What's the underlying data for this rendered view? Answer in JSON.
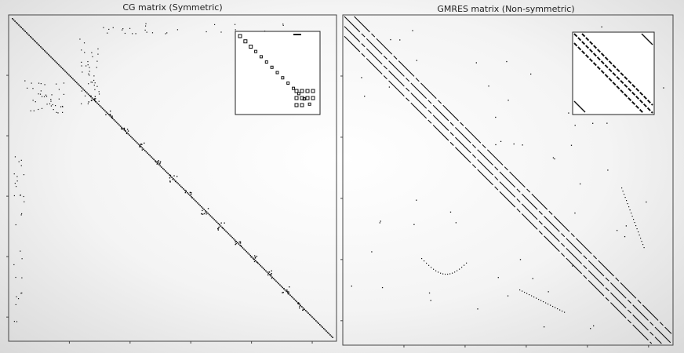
{
  "chart_data": [
    {
      "type": "spy",
      "title": "CG matrix (Symmetric)",
      "xlabel": "",
      "ylabel": "",
      "structure": {
        "main_diagonal": true,
        "off_diagonals": [],
        "symmetric_scatter": true,
        "diagonal_blocks": true
      },
      "inset": {
        "present": true,
        "position": "top-right",
        "content": "zoomed diagonal block structure"
      },
      "grid": false
    },
    {
      "type": "spy",
      "title": "GMRES matrix (Non-symmetric)",
      "xlabel": "",
      "ylabel": "",
      "structure": {
        "main_diagonal": true,
        "off_diagonals": [
          -0.03,
          0.03,
          -0.06
        ],
        "symmetric_scatter": false,
        "diagonal_blocks": false
      },
      "inset": {
        "present": true,
        "position": "top-right",
        "content": "zoomed banded structure"
      },
      "grid": false
    }
  ]
}
